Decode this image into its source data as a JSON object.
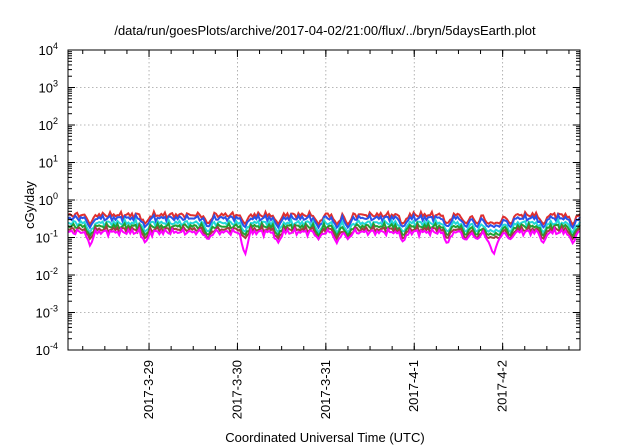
{
  "chart_data": {
    "type": "line",
    "title": "/data/run/goesPlots/archive/2017-04-02/21:00/flux/../bryn/5daysEarth.plot",
    "xlabel": "Coordinated Universal Time (UTC)",
    "ylabel": "cGy/day",
    "yscale": "log",
    "ylim": [
      0.0001,
      10000
    ],
    "xlim": [
      "2017-03-28 02:00",
      "2017-04-02 21:00"
    ],
    "grid": true,
    "legend": "none",
    "x_tick_labels": [
      "2017-3-29",
      "2017-3-30",
      "2017-3-31",
      "2017-4-1",
      "2017-4-2"
    ],
    "x_ticks": [
      "2017-03-29 00:00",
      "2017-03-30 00:00",
      "2017-03-31 00:00",
      "2017-04-01 00:00",
      "2017-04-02 00:00"
    ],
    "y_ticks": [
      {
        "value": 0.0001,
        "base": "10",
        "exp": "-4"
      },
      {
        "value": 0.001,
        "base": "10",
        "exp": "-3"
      },
      {
        "value": 0.01,
        "base": "10",
        "exp": "-2"
      },
      {
        "value": 0.1,
        "base": "10",
        "exp": "-1"
      },
      {
        "value": 1,
        "base": "10",
        "exp": "0"
      },
      {
        "value": 10,
        "base": "10",
        "exp": "1"
      },
      {
        "value": 100,
        "base": "10",
        "exp": "2"
      },
      {
        "value": 1000,
        "base": "10",
        "exp": "3"
      },
      {
        "value": 10000,
        "base": "10",
        "exp": "4"
      }
    ],
    "series": [
      {
        "color": "#e0302f",
        "base": 0.4
      },
      {
        "color": "#2a52e8",
        "base": 0.33
      },
      {
        "color": "#22d8d8",
        "base": 0.245
      },
      {
        "color": "#20a030",
        "base": 0.2
      },
      {
        "color": "#a04040",
        "base": 0.165
      },
      {
        "color": "#ff00ff",
        "base": 0.14
      }
    ],
    "dips": [
      {
        "t": "2017-03-28 08:00",
        "y": 0.06
      },
      {
        "t": "2017-03-28 23:00",
        "y": 0.07
      },
      {
        "t": "2017-03-29 16:00",
        "y": 0.085
      },
      {
        "t": "2017-03-30 02:00",
        "y": 0.032
      },
      {
        "t": "2017-03-30 11:00",
        "y": 0.07
      },
      {
        "t": "2017-03-30 22:00",
        "y": 0.09
      },
      {
        "t": "2017-03-31 03:00",
        "y": 0.07
      },
      {
        "t": "2017-03-31 06:00",
        "y": 0.09
      },
      {
        "t": "2017-03-31 21:00",
        "y": 0.075
      },
      {
        "t": "2017-04-01 14:00",
        "y": 0.08
      },
      {
        "t": "2017-04-01 17:00",
        "y": 0.085
      },
      {
        "t": "2017-04-01 20:00",
        "y": 0.08
      },
      {
        "t": "2017-04-01 23:00",
        "y": 0.09
      },
      {
        "t": "2017-04-02 02:00",
        "y": 0.085
      },
      {
        "t": "2017-04-01 09:00",
        "y": 0.065
      },
      {
        "t": "2017-04-01 21:30",
        "y": 0.031
      },
      {
        "t": "2017-04-02 11:00",
        "y": 0.07
      },
      {
        "t": "2017-04-02 19:00",
        "y": 0.07
      }
    ]
  }
}
